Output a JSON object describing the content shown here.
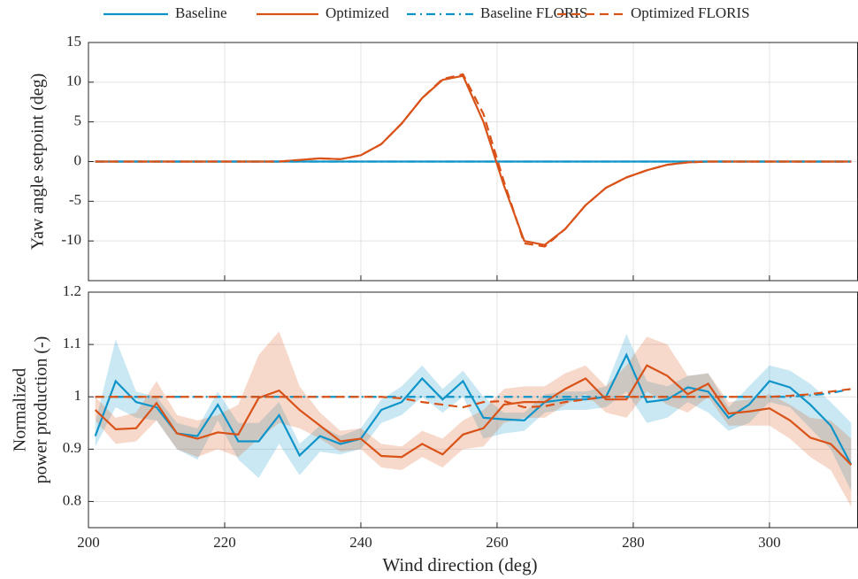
{
  "chart_data": [
    {
      "type": "line",
      "ylabel": "Yaw angle setpoint (deg)",
      "x": [
        201,
        204,
        207,
        210,
        213,
        216,
        219,
        222,
        225,
        228,
        231,
        234,
        237,
        240,
        243,
        246,
        249,
        252,
        255,
        258,
        261,
        264,
        267,
        270,
        273,
        276,
        279,
        282,
        285,
        288,
        291,
        294,
        297,
        300,
        303,
        306,
        309,
        312
      ],
      "xlim": [
        200,
        313
      ],
      "xticks": [
        200,
        220,
        240,
        260,
        280,
        300
      ],
      "ylim": [
        -15,
        15
      ],
      "yticks": [
        -10,
        -5,
        0,
        5,
        10,
        15
      ],
      "grid": true,
      "series": [
        {
          "name": "Baseline",
          "color": "#0e94c8",
          "linestyle": "solid",
          "values": [
            0,
            0,
            0,
            0,
            0,
            0,
            0,
            0,
            0,
            0,
            0,
            0,
            0,
            0,
            0,
            0,
            0,
            0,
            0,
            0,
            0,
            0,
            0,
            0,
            0,
            0,
            0,
            0,
            0,
            0,
            0,
            0,
            0,
            0,
            0,
            0,
            0,
            0
          ]
        },
        {
          "name": "Optimized",
          "color": "#d95319",
          "linestyle": "solid",
          "values": [
            0,
            0,
            0,
            0,
            0,
            0,
            0,
            0,
            0,
            0,
            0.2,
            0.4,
            0.3,
            0.8,
            2.2,
            4.8,
            8,
            10.3,
            10.8,
            5,
            -3,
            -10,
            -10.5,
            -8.5,
            -5.5,
            -3.3,
            -2,
            -1.1,
            -0.4,
            -0.1,
            0,
            0,
            0,
            0,
            0,
            0,
            0,
            0
          ]
        },
        {
          "name": "Baseline FLORIS",
          "color": "#0e94c8",
          "linestyle": "dashdot",
          "values": [
            0,
            0,
            0,
            0,
            0,
            0,
            0,
            0,
            0,
            0,
            0,
            0,
            0,
            0,
            0,
            0,
            0,
            0,
            0,
            0,
            0,
            0,
            0,
            0,
            0,
            0,
            0,
            0,
            0,
            0,
            0,
            0,
            0,
            0,
            0,
            0,
            0,
            0
          ]
        },
        {
          "name": "Optimized FLORIS",
          "color": "#d95319",
          "linestyle": "dashed",
          "values": [
            0,
            0,
            0,
            0,
            0,
            0,
            0,
            0,
            0,
            0,
            0.2,
            0.4,
            0.3,
            0.8,
            2.2,
            4.8,
            8,
            10.4,
            11,
            6,
            -2.5,
            -10.3,
            -10.7,
            -8.5,
            -5.5,
            -3.3,
            -2,
            -1.1,
            -0.4,
            -0.1,
            0,
            0,
            0,
            0,
            0,
            0,
            0,
            0
          ]
        }
      ]
    },
    {
      "type": "line",
      "ylabel": [
        "Normalized",
        "power production (-)"
      ],
      "xlabel": "Wind direction (deg)",
      "x": [
        201,
        204,
        207,
        210,
        213,
        216,
        219,
        222,
        225,
        228,
        231,
        234,
        237,
        240,
        243,
        246,
        249,
        252,
        255,
        258,
        261,
        264,
        267,
        270,
        273,
        276,
        279,
        282,
        285,
        288,
        291,
        294,
        297,
        300,
        303,
        306,
        309,
        312
      ],
      "xlim": [
        200,
        313
      ],
      "xticks": [
        200,
        220,
        240,
        260,
        280,
        300
      ],
      "ylim": [
        0.75,
        1.2
      ],
      "yticks": [
        0.8,
        0.9,
        1,
        1.1,
        1.2
      ],
      "grid": true,
      "series": [
        {
          "color": "#0e94c8",
          "linestyle": "solid",
          "values": [
            0.925,
            1.03,
            0.99,
            0.98,
            0.93,
            0.925,
            0.985,
            0.915,
            0.915,
            0.965,
            0.888,
            0.925,
            0.91,
            0.92,
            0.975,
            0.99,
            1.035,
            0.995,
            1.03,
            0.96,
            0.957,
            0.955,
            0.99,
            0.995,
            0.995,
            1.0,
            1.08,
            0.99,
            0.995,
            1.018,
            1.01,
            0.96,
            0.985,
            1.03,
            1.018,
            0.985,
            0.945,
            0.87
          ],
          "upper": [
            0.95,
            1.11,
            1.01,
            1.0,
            0.95,
            0.94,
            1.01,
            0.95,
            0.95,
            0.99,
            0.91,
            0.945,
            0.925,
            0.94,
            0.995,
            1.02,
            1.06,
            1.015,
            1.05,
            1.0,
            0.97,
            0.97,
            1.005,
            1.01,
            1.01,
            1.02,
            1.12,
            1.03,
            1.02,
            1.04,
            1.045,
            0.98,
            1.02,
            1.06,
            1.05,
            1.025,
            0.99,
            0.95
          ],
          "lower": [
            0.905,
            0.98,
            0.96,
            0.955,
            0.9,
            0.88,
            0.955,
            0.88,
            0.845,
            0.91,
            0.85,
            0.895,
            0.89,
            0.9,
            0.95,
            0.965,
            1.0,
            0.97,
            1.0,
            0.92,
            0.93,
            0.935,
            0.97,
            0.975,
            0.975,
            0.98,
            1.01,
            0.95,
            0.96,
            0.99,
            0.97,
            0.935,
            0.95,
            0.99,
            0.98,
            0.94,
            0.9,
            0.82
          ]
        },
        {
          "color": "#d95319",
          "linestyle": "solid",
          "values": [
            0.975,
            0.938,
            0.94,
            0.988,
            0.93,
            0.92,
            0.932,
            0.928,
            0.998,
            1.012,
            0.975,
            0.945,
            0.915,
            0.92,
            0.887,
            0.885,
            0.91,
            0.89,
            0.928,
            0.94,
            0.985,
            0.99,
            0.99,
            1.015,
            1.035,
            0.995,
            0.995,
            1.06,
            1.04,
            1.005,
            1.025,
            0.968,
            0.972,
            0.978,
            0.955,
            0.922,
            0.91,
            0.87
          ],
          "upper": [
            1.0,
            0.96,
            0.97,
            1.03,
            0.965,
            0.955,
            0.965,
            0.985,
            1.08,
            1.125,
            1.02,
            0.97,
            0.935,
            0.94,
            0.91,
            0.905,
            0.935,
            0.92,
            0.955,
            0.975,
            1.015,
            1.02,
            1.02,
            1.045,
            1.06,
            1.02,
            1.06,
            1.115,
            1.1,
            1.04,
            1.045,
            0.99,
            0.995,
            1.005,
            0.985,
            0.96,
            0.955,
            0.92
          ],
          "lower": [
            0.955,
            0.91,
            0.915,
            0.955,
            0.9,
            0.885,
            0.9,
            0.885,
            0.92,
            0.95,
            0.94,
            0.92,
            0.895,
            0.9,
            0.865,
            0.86,
            0.885,
            0.865,
            0.9,
            0.905,
            0.95,
            0.96,
            0.96,
            0.985,
            1.005,
            0.97,
            0.96,
            1.01,
            0.985,
            0.97,
            1.0,
            0.945,
            0.945,
            0.945,
            0.92,
            0.885,
            0.86,
            0.79
          ]
        },
        {
          "color": "#0e94c8",
          "linestyle": "dashdot",
          "values": [
            1,
            1,
            1,
            1,
            1,
            1,
            1,
            1,
            1,
            1,
            1,
            1,
            1,
            1,
            1,
            1,
            1,
            1,
            1,
            1,
            1,
            1,
            1,
            1,
            1,
            1,
            1,
            1,
            1,
            1,
            1,
            1,
            1,
            1,
            1,
            1.003,
            1.007,
            1.015
          ]
        },
        {
          "color": "#d95319",
          "linestyle": "dashed",
          "values": [
            1,
            1,
            1,
            1,
            1,
            1,
            1,
            1,
            1,
            1,
            1,
            1,
            1,
            1,
            1,
            0.997,
            0.99,
            0.985,
            0.98,
            0.99,
            0.992,
            0.98,
            0.982,
            0.99,
            0.995,
            1,
            1,
            1,
            1,
            1,
            1,
            1,
            1,
            1,
            1.002,
            1.005,
            1.01,
            1.015
          ]
        }
      ]
    }
  ]
}
